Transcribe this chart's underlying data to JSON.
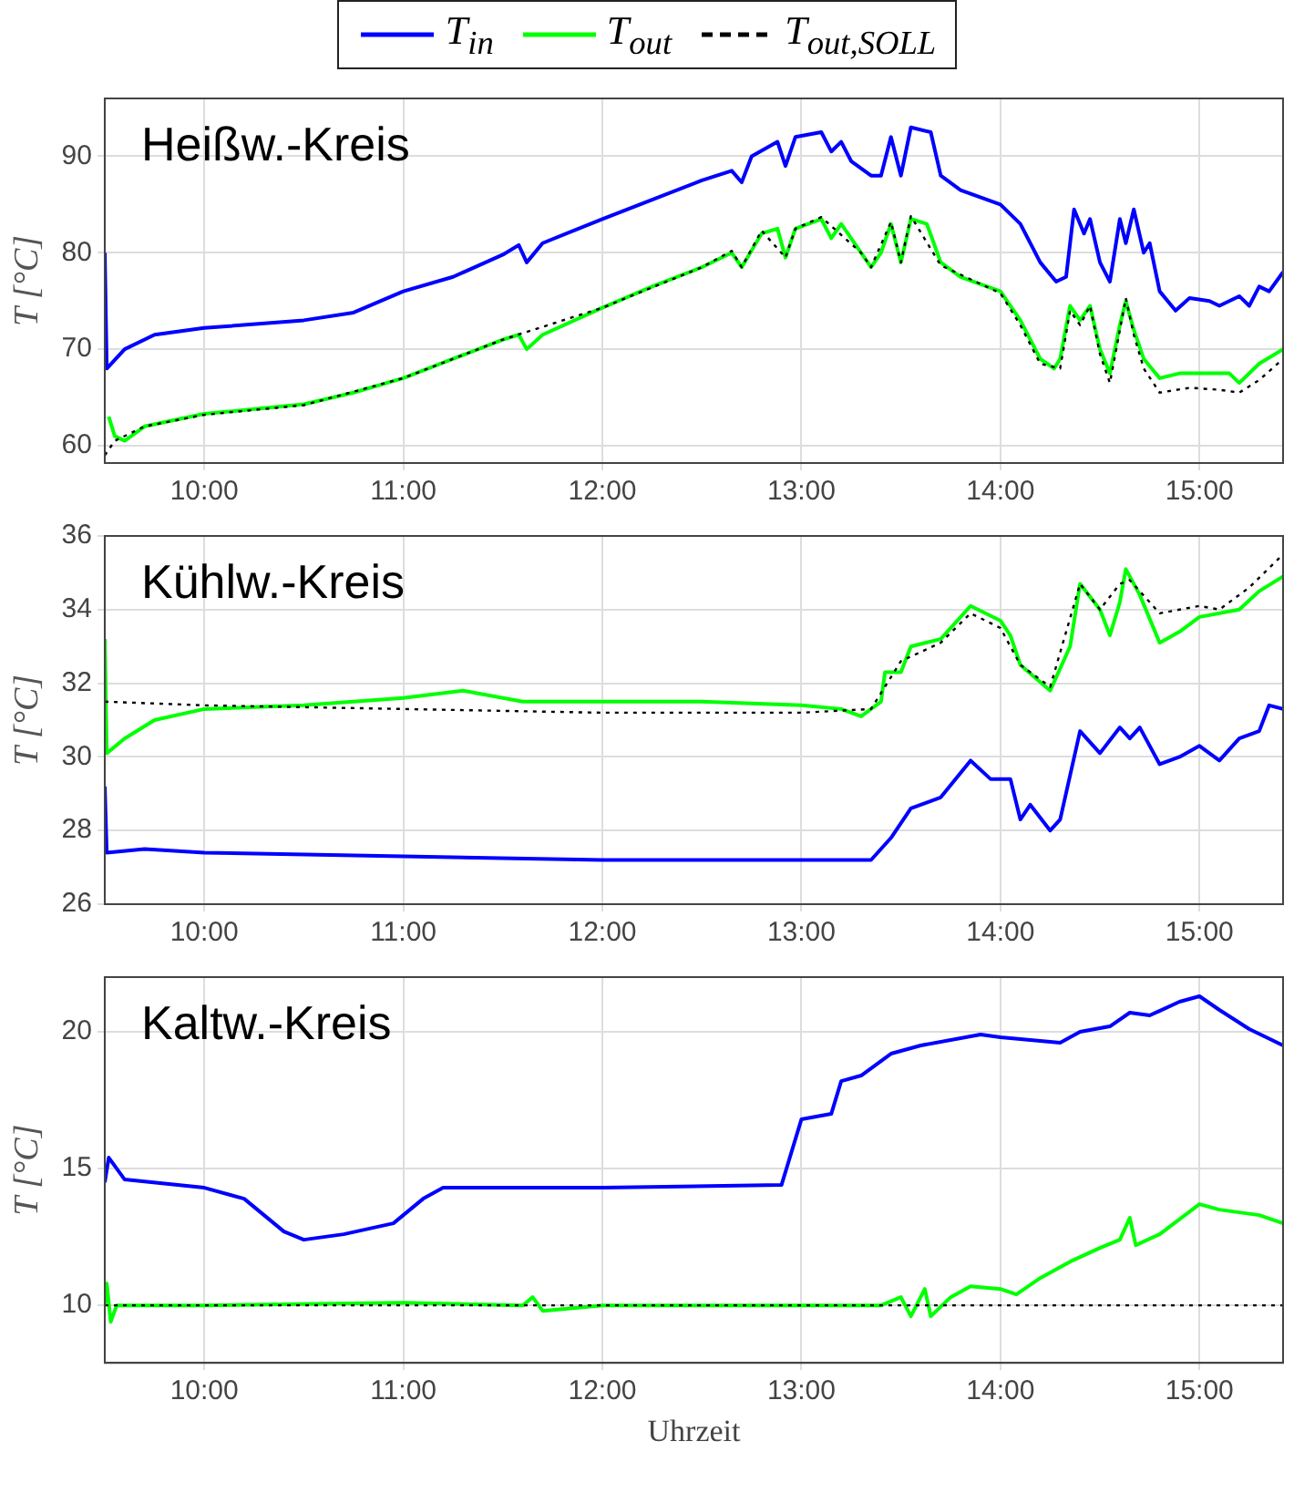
{
  "chart_data": [
    {
      "type": "line",
      "title": "Heißw.-Kreis",
      "ylabel": "T [°C]",
      "xlim": [
        9.5,
        15.42
      ],
      "xticks": [
        {
          "value": 10,
          "label": "10:00"
        },
        {
          "value": 11,
          "label": "11:00"
        },
        {
          "value": 12,
          "label": "12:00"
        },
        {
          "value": 13,
          "label": "13:00"
        },
        {
          "value": 14,
          "label": "14:00"
        },
        {
          "value": 15,
          "label": "15:00"
        }
      ],
      "ylim": [
        58.2,
        96
      ],
      "yticks": [
        60,
        70,
        80,
        90
      ],
      "grid": true,
      "legend": "top",
      "marker": "none",
      "series": [
        {
          "name": "T$_{in}$",
          "color": "#0000ff",
          "line_style": "solid",
          "x": [
            9.5,
            9.51,
            9.6,
            9.75,
            10,
            10.5,
            10.75,
            11,
            11.25,
            11.5,
            11.58,
            11.62,
            11.7,
            12,
            12.25,
            12.5,
            12.65,
            12.7,
            12.75,
            12.88,
            12.92,
            12.97,
            13.1,
            13.15,
            13.2,
            13.25,
            13.35,
            13.4,
            13.45,
            13.5,
            13.55,
            13.65,
            13.7,
            13.8,
            14,
            14.1,
            14.2,
            14.28,
            14.33,
            14.37,
            14.42,
            14.45,
            14.5,
            14.55,
            14.6,
            14.63,
            14.67,
            14.72,
            14.75,
            14.8,
            14.88,
            14.95,
            15.05,
            15.1,
            15.2,
            15.25,
            15.3,
            15.35,
            15.42
          ],
          "values": [
            80,
            68,
            70,
            71.5,
            72.2,
            73,
            73.8,
            76,
            77.5,
            79.8,
            80.8,
            79,
            81,
            83.5,
            85.5,
            87.5,
            88.5,
            87.3,
            90,
            91.5,
            89,
            92,
            92.5,
            90.5,
            91.5,
            89.5,
            88,
            88,
            92,
            88,
            93,
            92.5,
            88,
            86.5,
            85,
            83,
            79,
            77,
            77.5,
            84.5,
            82,
            83.5,
            79,
            77,
            83.5,
            81,
            84.5,
            80,
            81,
            76,
            74,
            75.3,
            75,
            74.5,
            75.5,
            74.5,
            76.5,
            76,
            78
          ]
        },
        {
          "name": "T$_{out}$",
          "color": "#00ff00",
          "line_style": "solid",
          "x": [
            9.52,
            9.55,
            9.6,
            9.7,
            10,
            10.5,
            10.75,
            11,
            11.25,
            11.5,
            11.58,
            11.62,
            11.7,
            12,
            12.25,
            12.5,
            12.65,
            12.7,
            12.8,
            12.88,
            12.92,
            12.97,
            13.1,
            13.15,
            13.2,
            13.3,
            13.35,
            13.4,
            13.45,
            13.5,
            13.55,
            13.63,
            13.7,
            13.8,
            14,
            14.1,
            14.2,
            14.27,
            14.3,
            14.35,
            14.4,
            14.45,
            14.5,
            14.55,
            14.6,
            14.63,
            14.67,
            14.72,
            14.8,
            14.9,
            15.05,
            15.15,
            15.2,
            15.3,
            15.42
          ],
          "values": [
            63,
            61,
            60.5,
            62,
            63.3,
            64.3,
            65.5,
            67,
            69,
            71,
            71.5,
            70,
            71.5,
            74.3,
            76.5,
            78.5,
            80,
            78.5,
            82,
            82.5,
            79.5,
            82.5,
            83.5,
            81.5,
            83,
            80,
            78.5,
            80,
            83,
            79,
            83.5,
            83,
            79,
            77.5,
            76,
            73,
            69,
            68,
            69,
            74.5,
            73,
            74.5,
            70,
            67.5,
            72.5,
            75,
            72,
            69,
            67,
            67.5,
            67.5,
            67.5,
            66.5,
            68.5,
            70
          ]
        },
        {
          "name": "T$_{out,SOLL}$",
          "color": "#000000",
          "line_style": "dotted",
          "x": [
            9.5,
            9.55,
            9.7,
            10,
            10.5,
            11,
            11.5,
            12,
            12.5,
            12.65,
            12.7,
            12.8,
            12.92,
            12.97,
            13.1,
            13.3,
            13.35,
            13.45,
            13.5,
            13.55,
            13.7,
            14,
            14.1,
            14.2,
            14.3,
            14.35,
            14.4,
            14.45,
            14.5,
            14.55,
            14.6,
            14.63,
            14.67,
            14.72,
            14.8,
            14.95,
            15.1,
            15.2,
            15.3,
            15.42
          ],
          "values": [
            59,
            60.5,
            62,
            63.2,
            64.2,
            67,
            71,
            74.3,
            78.5,
            80.2,
            78.5,
            82.3,
            79.5,
            82.5,
            83.7,
            80,
            78.5,
            83.2,
            79,
            83.8,
            78.7,
            75.8,
            72.5,
            68.5,
            68,
            74,
            72.5,
            74.5,
            69.5,
            66.5,
            72,
            75.3,
            71.5,
            68,
            65.5,
            66,
            65.8,
            65.5,
            66.8,
            69
          ]
        }
      ]
    },
    {
      "type": "line",
      "title": "Kühlw.-Kreis",
      "ylabel": "T [°C]",
      "xlim": [
        9.5,
        15.42
      ],
      "xticks": [
        {
          "value": 10,
          "label": "10:00"
        },
        {
          "value": 11,
          "label": "11:00"
        },
        {
          "value": 12,
          "label": "12:00"
        },
        {
          "value": 13,
          "label": "13:00"
        },
        {
          "value": 14,
          "label": "14:00"
        },
        {
          "value": 15,
          "label": "15:00"
        }
      ],
      "ylim": [
        26,
        36
      ],
      "yticks": [
        26,
        28,
        30,
        32,
        34,
        36
      ],
      "grid": true,
      "marker": "none",
      "series": [
        {
          "color": "#0000ff",
          "line_style": "solid",
          "x": [
            9.5,
            9.51,
            9.7,
            10,
            11,
            12,
            13,
            13.35,
            13.45,
            13.55,
            13.7,
            13.85,
            13.95,
            14.05,
            14.1,
            14.15,
            14.25,
            14.3,
            14.4,
            14.5,
            14.6,
            14.65,
            14.7,
            14.8,
            14.9,
            15,
            15.1,
            15.2,
            15.3,
            15.35,
            15.42
          ],
          "values": [
            29.2,
            27.4,
            27.5,
            27.4,
            27.3,
            27.2,
            27.2,
            27.2,
            27.8,
            28.6,
            28.9,
            29.9,
            29.4,
            29.4,
            28.3,
            28.7,
            28,
            28.3,
            30.7,
            30.1,
            30.8,
            30.5,
            30.8,
            29.8,
            30,
            30.3,
            29.9,
            30.5,
            30.7,
            31.4,
            31.3
          ]
        },
        {
          "color": "#00ff00",
          "line_style": "solid",
          "x": [
            9.5,
            9.51,
            9.6,
            9.75,
            10,
            10.5,
            11,
            11.3,
            11.6,
            12,
            12.5,
            13,
            13.2,
            13.3,
            13.4,
            13.42,
            13.5,
            13.55,
            13.7,
            13.85,
            14,
            14.05,
            14.1,
            14.25,
            14.35,
            14.4,
            14.5,
            14.55,
            14.6,
            14.63,
            14.7,
            14.8,
            14.9,
            15,
            15.2,
            15.3,
            15.42
          ],
          "values": [
            33.2,
            30.1,
            30.5,
            31,
            31.3,
            31.4,
            31.6,
            31.8,
            31.5,
            31.5,
            31.5,
            31.4,
            31.3,
            31.1,
            31.5,
            32.3,
            32.3,
            33,
            33.2,
            34.1,
            33.7,
            33.3,
            32.5,
            31.8,
            33,
            34.7,
            34,
            33.3,
            34.2,
            35.1,
            34.4,
            33.1,
            33.4,
            33.8,
            34,
            34.5,
            34.9
          ]
        },
        {
          "color": "#000000",
          "line_style": "dotted",
          "x": [
            9.5,
            10,
            11,
            12,
            13,
            13.35,
            13.5,
            13.7,
            13.85,
            14,
            14.1,
            14.25,
            14.4,
            14.5,
            14.6,
            14.65,
            14.8,
            14.9,
            15,
            15.1,
            15.25,
            15.42
          ],
          "values": [
            31.5,
            31.4,
            31.3,
            31.2,
            31.2,
            31.3,
            32.6,
            33.1,
            33.9,
            33.5,
            32.5,
            31.9,
            34.7,
            34,
            34.7,
            34.8,
            33.9,
            34,
            34.1,
            34,
            34.6,
            35.5
          ]
        }
      ]
    },
    {
      "type": "line",
      "title": "Kaltw.-Kreis",
      "ylabel": "T [°C]",
      "xlabel": "Uhrzeit",
      "xlim": [
        9.5,
        15.42
      ],
      "xticks": [
        {
          "value": 10,
          "label": "10:00"
        },
        {
          "value": 11,
          "label": "11:00"
        },
        {
          "value": 12,
          "label": "12:00"
        },
        {
          "value": 13,
          "label": "13:00"
        },
        {
          "value": 14,
          "label": "14:00"
        },
        {
          "value": 15,
          "label": "15:00"
        }
      ],
      "ylim": [
        7.9,
        22
      ],
      "yticks": [
        10,
        15,
        20
      ],
      "grid": true,
      "marker": "none",
      "series": [
        {
          "color": "#0000ff",
          "line_style": "solid",
          "x": [
            9.5,
            9.52,
            9.6,
            10,
            10.2,
            10.4,
            10.5,
            10.7,
            10.95,
            11.1,
            11.2,
            12,
            12.9,
            13,
            13.15,
            13.2,
            13.3,
            13.45,
            13.6,
            13.9,
            14,
            14.3,
            14.4,
            14.55,
            14.65,
            14.75,
            14.9,
            15,
            15.1,
            15.25,
            15.42
          ],
          "values": [
            14.5,
            15.4,
            14.6,
            14.3,
            13.9,
            12.7,
            12.4,
            12.6,
            13,
            13.9,
            14.3,
            14.3,
            14.4,
            16.8,
            17,
            18.2,
            18.4,
            19.2,
            19.5,
            19.9,
            19.8,
            19.6,
            20,
            20.2,
            20.7,
            20.6,
            21.1,
            21.3,
            20.8,
            20.1,
            19.5
          ]
        },
        {
          "color": "#00ff00",
          "line_style": "solid",
          "x": [
            9.5,
            9.51,
            9.53,
            9.56,
            10,
            11,
            11.6,
            11.65,
            11.7,
            12,
            13,
            13.4,
            13.5,
            13.55,
            13.62,
            13.65,
            13.75,
            13.85,
            14,
            14.08,
            14.2,
            14.35,
            14.5,
            14.6,
            14.65,
            14.68,
            14.8,
            15,
            15.1,
            15.3,
            15.42
          ],
          "values": [
            10,
            10.8,
            9.4,
            10,
            10,
            10.1,
            10,
            10.3,
            9.8,
            10,
            10,
            10,
            10.3,
            9.6,
            10.6,
            9.6,
            10.3,
            10.7,
            10.6,
            10.4,
            11,
            11.6,
            12.1,
            12.4,
            13.2,
            12.2,
            12.6,
            13.7,
            13.5,
            13.3,
            13
          ]
        },
        {
          "color": "#000000",
          "line_style": "dotted",
          "x": [
            9.5,
            15.42
          ],
          "values": [
            10,
            10
          ]
        }
      ]
    }
  ]
}
